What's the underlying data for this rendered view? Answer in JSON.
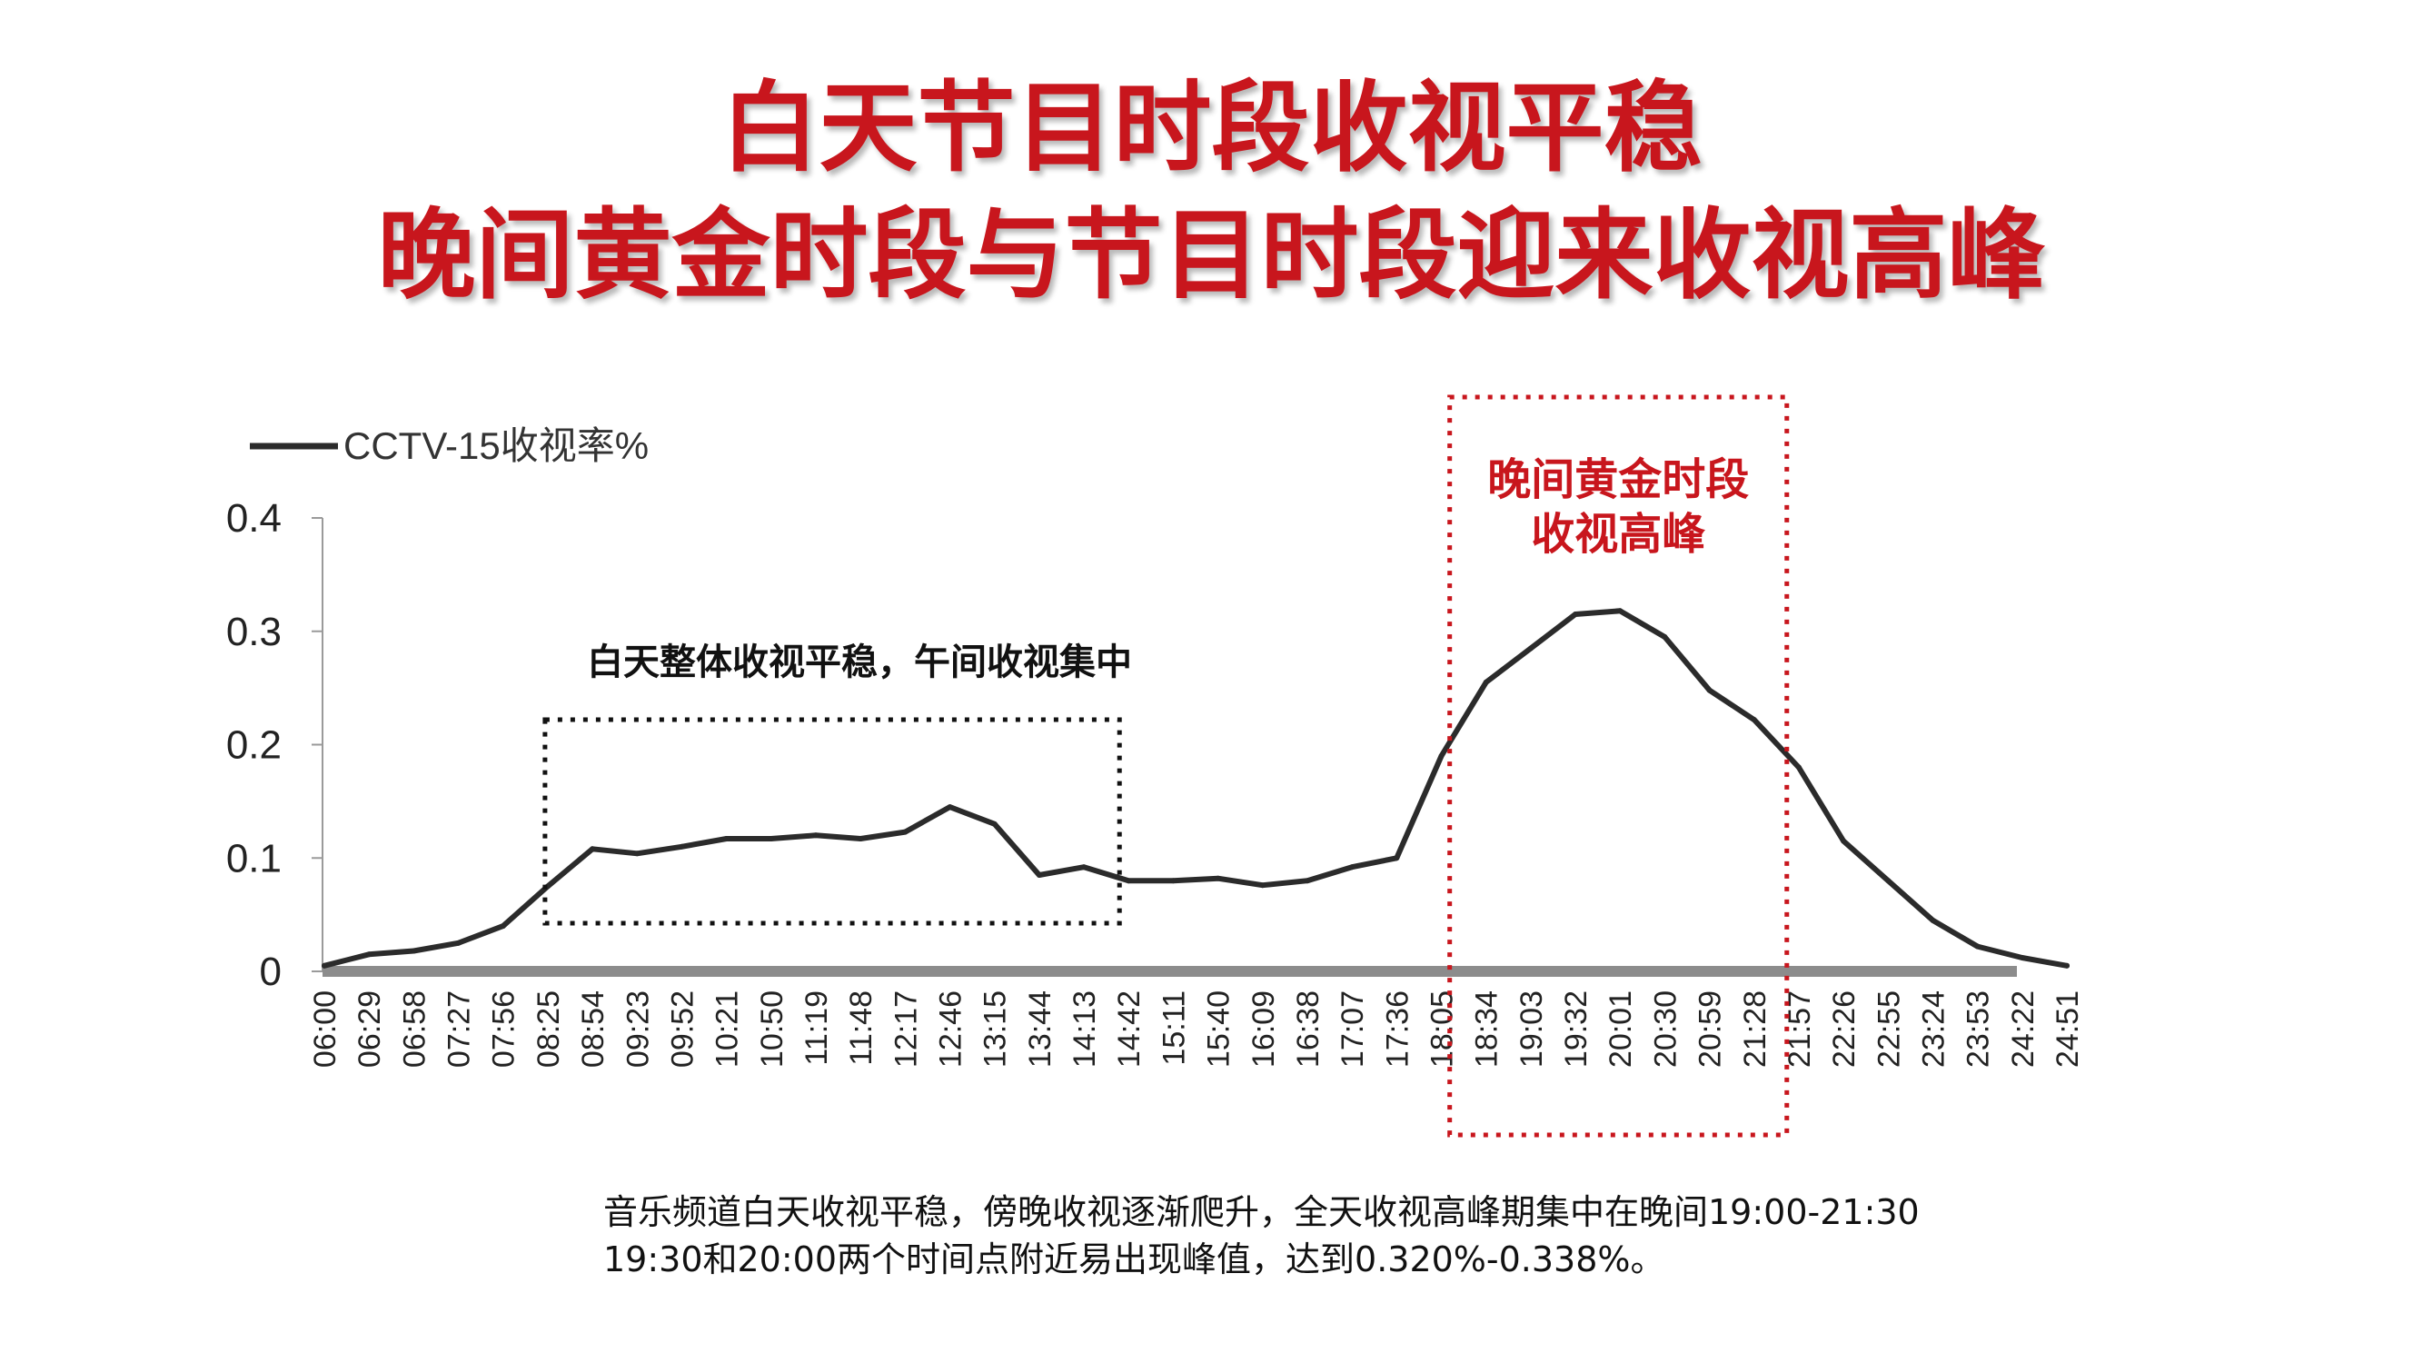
{
  "slide": {
    "title_line1": "白天节目时段收视平稳",
    "title_line2": "晚间黄金时段与节目时段迎来收视高峰",
    "caption_line1": "音乐频道白天收视平稳，傍晚收视逐渐爬升，全天收视高峰期集中在晚间19:00-21:30",
    "caption_line2": "19:30和20:00两个时间点附近易出现峰值，达到0.320%-0.338%。",
    "accent_color": "#c8161d"
  },
  "chart_data": {
    "type": "line",
    "legend": "top-left",
    "grid": false,
    "ylim": [
      0,
      0.4
    ],
    "yticks": [
      "0",
      "0.1",
      "0.2",
      "0.3",
      "0.4"
    ],
    "categories": [
      "06:00",
      "06:29",
      "06:58",
      "07:27",
      "07:56",
      "08:25",
      "08:54",
      "09:23",
      "09:52",
      "10:21",
      "10:50",
      "11:19",
      "11:48",
      "12:17",
      "12:46",
      "13:15",
      "13:44",
      "14:13",
      "14:42",
      "15:11",
      "15:40",
      "16:09",
      "16:38",
      "17:07",
      "17:36",
      "18:05",
      "18:34",
      "19:03",
      "19:32",
      "20:01",
      "20:30",
      "20:59",
      "21:28",
      "21:57",
      "22:26",
      "22:55",
      "23:24",
      "23:53",
      "24:22",
      "24:51"
    ],
    "series": [
      {
        "name": "CCTV-15收视率%",
        "color": "#2b2b2b",
        "values": [
          0.005,
          0.015,
          0.018,
          0.025,
          0.04,
          0.075,
          0.108,
          0.104,
          0.11,
          0.117,
          0.117,
          0.12,
          0.117,
          0.123,
          0.145,
          0.13,
          0.085,
          0.092,
          0.08,
          0.08,
          0.082,
          0.076,
          0.08,
          0.092,
          0.1,
          0.19,
          0.255,
          0.285,
          0.315,
          0.318,
          0.295,
          0.248,
          0.222,
          0.18,
          0.115,
          0.08,
          0.045,
          0.022,
          0.012,
          0.005
        ]
      }
    ],
    "annotations": [
      {
        "text": "白天整体收视平稳，午间收视集中",
        "color": "#111111",
        "box_from": "08:25",
        "box_to": "14:42",
        "box_style": "dotted"
      },
      {
        "line1": "晚间黄金时段",
        "line2": "收视高峰",
        "color": "#c8161d",
        "box_from": "18:34",
        "box_to": "21:28",
        "box_style": "dotted"
      }
    ]
  }
}
